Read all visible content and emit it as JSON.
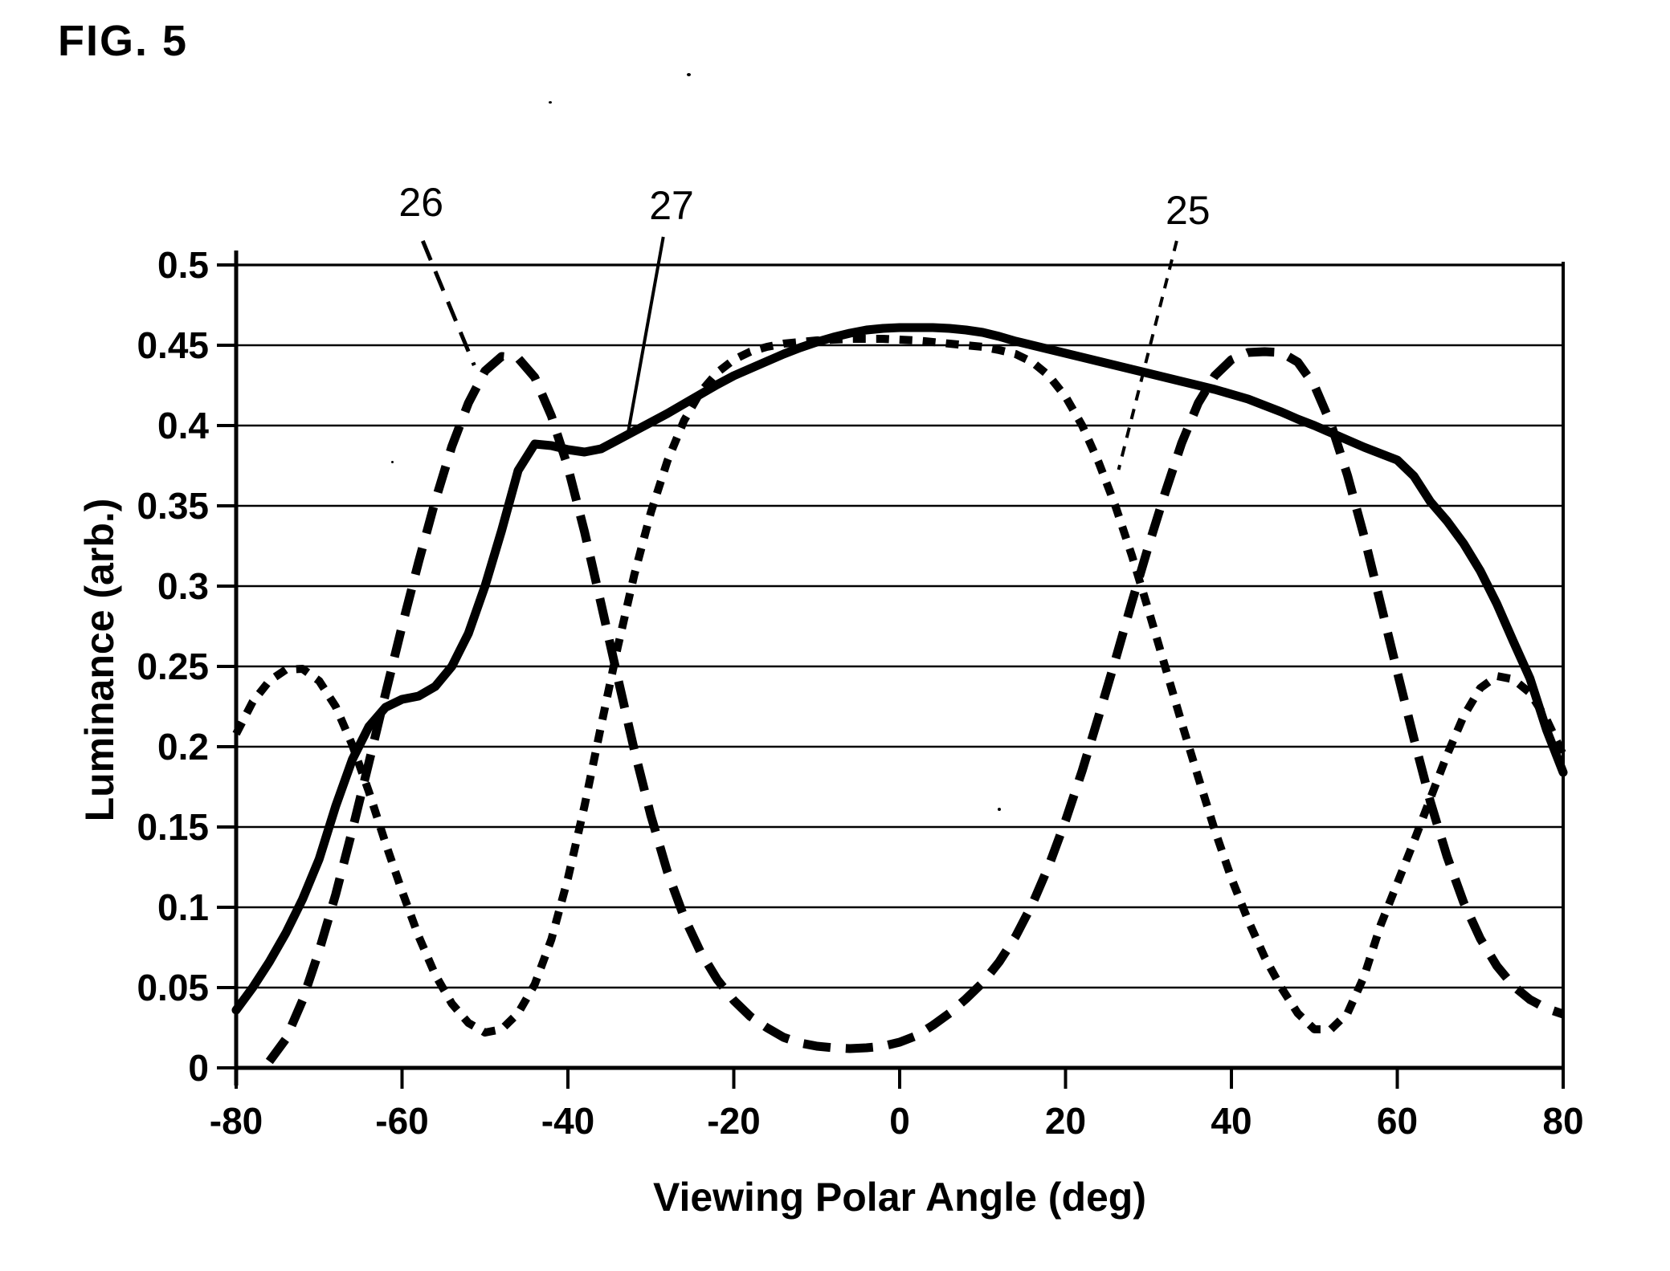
{
  "figure": {
    "title": "FIG. 5"
  },
  "chart_data": {
    "type": "line",
    "title": "",
    "xlabel": "Viewing Polar Angle (deg)",
    "ylabel": "Luminance (arb.)",
    "xlim": [
      -80,
      80
    ],
    "ylim": [
      0,
      0.5
    ],
    "x_tick_labels": [
      "-80",
      "-60",
      "-40",
      "-20",
      "0",
      "20",
      "40",
      "60",
      "80"
    ],
    "x_tick_values": [
      -80,
      -60,
      -40,
      -20,
      0,
      20,
      40,
      60,
      80
    ],
    "y_tick_labels": [
      "0",
      "0.05",
      "0.1",
      "0.15",
      "0.2",
      "0.25",
      "0.3",
      "0.35",
      "0.4",
      "0.45",
      "0.5"
    ],
    "y_tick_values": [
      0,
      0.05,
      0.1,
      0.15,
      0.2,
      0.25,
      0.3,
      0.35,
      0.4,
      0.45,
      0.5
    ],
    "grid": "horizontal gridlines at every 0.05, no vertical gridlines",
    "legend_position": "none (curves labeled by leader lines)",
    "ink_color": "#000000",
    "series": [
      {
        "name": "25",
        "style": "short-dash",
        "x_start": -80,
        "x_step": 2,
        "values": [
          0.208,
          0.228,
          0.241,
          0.248,
          0.2485,
          0.241,
          0.225,
          0.201,
          0.172,
          0.14,
          0.11,
          0.082,
          0.058,
          0.04,
          0.028,
          0.022,
          0.024,
          0.034,
          0.052,
          0.08,
          0.118,
          0.163,
          0.213,
          0.262,
          0.307,
          0.346,
          0.378,
          0.403,
          0.421,
          0.433,
          0.441,
          0.446,
          0.449,
          0.451,
          0.452,
          0.453,
          0.4535,
          0.454,
          0.454,
          0.454,
          0.4535,
          0.453,
          0.452,
          0.451,
          0.45,
          0.449,
          0.447,
          0.4445,
          0.4395,
          0.431,
          0.418,
          0.4,
          0.377,
          0.35,
          0.319,
          0.285,
          0.25,
          0.215,
          0.181,
          0.148,
          0.118,
          0.092,
          0.069,
          0.05,
          0.034,
          0.024,
          0.024,
          0.034,
          0.057,
          0.089,
          0.115,
          0.141,
          0.168,
          0.195,
          0.219,
          0.2365,
          0.244,
          0.242,
          0.2335,
          0.217,
          0.195
        ]
      },
      {
        "name": "26",
        "style": "long-dash",
        "x_start": -76,
        "x_step": 2,
        "values": [
          0.004,
          0.018,
          0.042,
          0.073,
          0.108,
          0.148,
          0.19,
          0.233,
          0.275,
          0.315,
          0.353,
          0.387,
          0.414,
          0.434,
          0.443,
          0.442,
          0.43,
          0.406,
          0.374,
          0.334,
          0.289,
          0.243,
          0.198,
          0.157,
          0.122,
          0.094,
          0.072,
          0.055,
          0.042,
          0.032,
          0.025,
          0.019,
          0.0155,
          0.0135,
          0.0125,
          0.012,
          0.0125,
          0.0135,
          0.016,
          0.02,
          0.0265,
          0.034,
          0.043,
          0.053,
          0.066,
          0.082,
          0.102,
          0.126,
          0.154,
          0.185,
          0.219,
          0.254,
          0.29,
          0.325,
          0.358,
          0.389,
          0.414,
          0.431,
          0.441,
          0.4455,
          0.446,
          0.4455,
          0.4395,
          0.425,
          0.401,
          0.369,
          0.331,
          0.289,
          0.2465,
          0.205,
          0.1655,
          0.1315,
          0.103,
          0.0805,
          0.0635,
          0.051,
          0.0425,
          0.037,
          0.0335
        ]
      },
      {
        "name": "27",
        "style": "solid",
        "x_start": -80,
        "x_step": 2,
        "values": [
          0.036,
          0.05,
          0.066,
          0.084,
          0.105,
          0.13,
          0.163,
          0.192,
          0.2125,
          0.2245,
          0.2295,
          0.2315,
          0.2375,
          0.25,
          0.2705,
          0.3,
          0.3345,
          0.372,
          0.3885,
          0.3875,
          0.385,
          0.3835,
          0.3855,
          0.391,
          0.3965,
          0.402,
          0.4075,
          0.4135,
          0.4195,
          0.4255,
          0.431,
          0.4355,
          0.44,
          0.4445,
          0.4485,
          0.452,
          0.455,
          0.4575,
          0.4595,
          0.4605,
          0.461,
          0.461,
          0.461,
          0.4605,
          0.4595,
          0.458,
          0.4555,
          0.4525,
          0.45,
          0.4475,
          0.445,
          0.4425,
          0.44,
          0.4375,
          0.435,
          0.4325,
          0.43,
          0.4275,
          0.425,
          0.4225,
          0.4195,
          0.4165,
          0.4125,
          0.4085,
          0.404,
          0.4,
          0.3955,
          0.391,
          0.3865,
          0.3825,
          0.3785,
          0.3685,
          0.3525,
          0.3405,
          0.3265,
          0.3095,
          0.289,
          0.2655,
          0.2425,
          0.2105,
          0.184
        ]
      }
    ],
    "annotations": [
      {
        "text": "26",
        "target_series": "25-style-note: points to long-dash curve",
        "label_deg": -57.7,
        "label_lum": 0.539,
        "leader_style": "long-dash",
        "leader": {
          "deg1": -57.5,
          "lum1": 0.515,
          "deg2": -51.3,
          "lum2": 0.4375
        }
      },
      {
        "text": "27",
        "target_series": "points to solid curve",
        "label_deg": -27.5,
        "label_lum": 0.537,
        "leader_style": "solid",
        "leader": {
          "deg1": -28.5,
          "lum1": 0.5175,
          "deg2": -32.8,
          "lum2": 0.394
        }
      },
      {
        "text": "25",
        "target_series": "points to short-dash curve",
        "label_deg": 34.75,
        "label_lum": 0.534,
        "leader_style": "short-dash",
        "leader": {
          "deg1": 33.4,
          "lum1": 0.515,
          "deg2": 26.4,
          "lum2": 0.3725
        }
      }
    ]
  }
}
